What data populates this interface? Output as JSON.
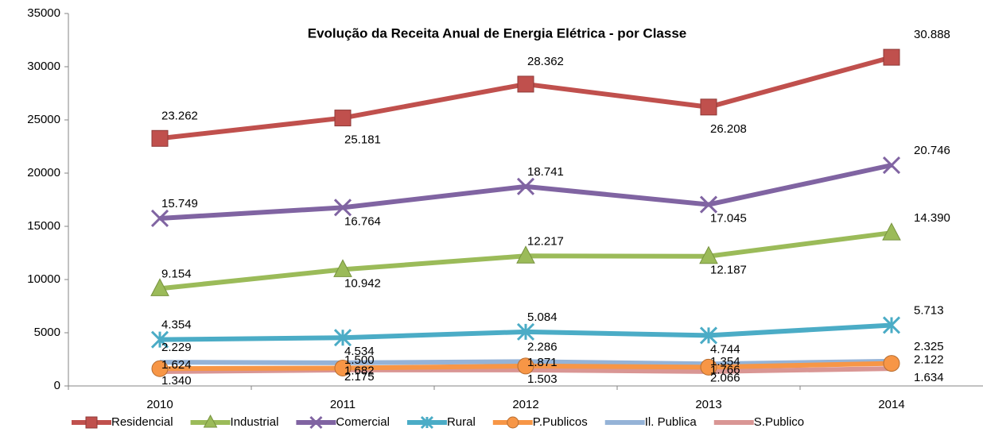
{
  "chart_data": {
    "type": "line",
    "title": "Evolução da Receita Anual de Energia Elétrica - por Classe",
    "categories": [
      "2010",
      "2011",
      "2012",
      "2013",
      "2014"
    ],
    "ylim": [
      0,
      35000
    ],
    "yticks": [
      0,
      5000,
      10000,
      15000,
      20000,
      25000,
      30000,
      35000
    ],
    "legend": "bottom",
    "series": [
      {
        "name": "Residencial",
        "color": "#c0504d",
        "marker": "square",
        "values": [
          23262,
          25181,
          28362,
          26208,
          30888
        ],
        "value_labels": [
          "23.262",
          "25.181",
          "28.362",
          "26.208",
          "30.888"
        ]
      },
      {
        "name": "Industrial",
        "color": "#9bbb59",
        "marker": "triangle",
        "values": [
          9154,
          10942,
          12217,
          12187,
          14390
        ],
        "value_labels": [
          "9.154",
          "10.942",
          "12.217",
          "12.187",
          "14.390"
        ]
      },
      {
        "name": "Comercial",
        "color": "#8064a2",
        "marker": "x",
        "values": [
          15749,
          16764,
          18741,
          17045,
          20746
        ],
        "value_labels": [
          "15.749",
          "16.764",
          "18.741",
          "17.045",
          "20.746"
        ]
      },
      {
        "name": "Rural",
        "color": "#4bacc6",
        "marker": "star",
        "values": [
          4354,
          4534,
          5084,
          4744,
          5713
        ],
        "value_labels": [
          "4.354",
          "4.534",
          "5.084",
          "4.744",
          "5.713"
        ]
      },
      {
        "name": "P.Publicos",
        "color": "#f79646",
        "marker": "circle",
        "values": [
          1624,
          1682,
          1871,
          1766,
          2122
        ],
        "value_labels": [
          "1.624",
          "1.682",
          "1.871",
          "1.766",
          "2.122"
        ]
      },
      {
        "name": "Il. Publica",
        "color": "#95b3d7",
        "marker": "none",
        "values": [
          2229,
          2175,
          2286,
          2066,
          2325
        ],
        "value_labels": [
          "2.229",
          "2.175",
          "2.286",
          "2.066",
          "2.325"
        ]
      },
      {
        "name": "S.Publico",
        "color": "#d99694",
        "marker": "none",
        "values": [
          1340,
          1500,
          1503,
          1354,
          1634
        ],
        "value_labels": [
          "1.340",
          "1.500",
          "1.503",
          "1.354",
          "1.634"
        ]
      }
    ]
  }
}
